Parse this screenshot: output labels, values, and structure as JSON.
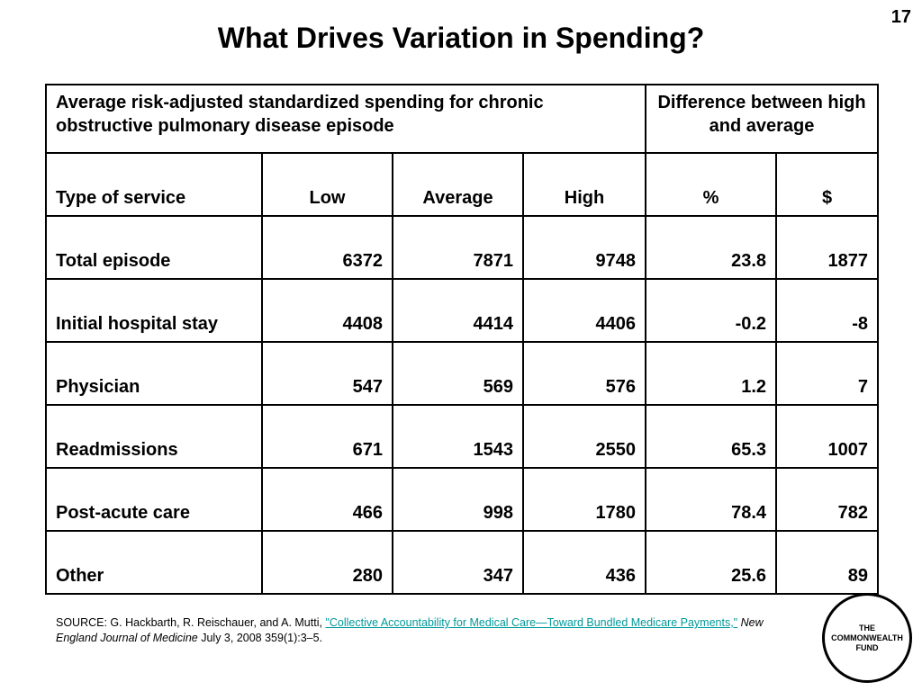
{
  "slide_number": "17",
  "title": "What Drives Variation in Spending?",
  "table": {
    "header_main": "Average risk-adjusted standardized spending for chronic obstructive pulmonary disease episode",
    "header_diff": "Difference between high and average",
    "columns": [
      "Type of service",
      "Low",
      "Average",
      "High",
      "%",
      "$"
    ],
    "rows": [
      {
        "service": "Total episode",
        "low": "6372",
        "average": "7871",
        "high": "9748",
        "pct": "23.8",
        "usd": "1877"
      },
      {
        "service": "Initial hospital stay",
        "low": "4408",
        "average": "4414",
        "high": "4406",
        "pct": "-0.2",
        "usd": "-8"
      },
      {
        "service": "Physician",
        "low": "547",
        "average": "569",
        "high": "576",
        "pct": "1.2",
        "usd": "7"
      },
      {
        "service": "Readmissions",
        "low": "671",
        "average": "1543",
        "high": "2550",
        "pct": "65.3",
        "usd": "1007"
      },
      {
        "service": "Post-acute care",
        "low": "466",
        "average": "998",
        "high": "1780",
        "pct": "78.4",
        "usd": "782"
      },
      {
        "service": "Other",
        "low": "280",
        "average": "347",
        "high": "436",
        "pct": "25.6",
        "usd": "89"
      }
    ]
  },
  "source": {
    "prefix": "SOURCE: G. Hackbarth, R. Reischauer, and A. Mutti, ",
    "link_text": "\"Collective Accountability for Medical Care—Toward Bundled Medicare Payments,\"",
    "journal": "New England Journal of Medicine",
    "suffix": " July 3, 2008 359(1):3–5."
  },
  "logo": {
    "line1": "THE",
    "line2": "COMMONWEALTH",
    "line3": "FUND"
  },
  "colors": {
    "link": "#009999",
    "text": "#000000",
    "background": "#ffffff"
  }
}
